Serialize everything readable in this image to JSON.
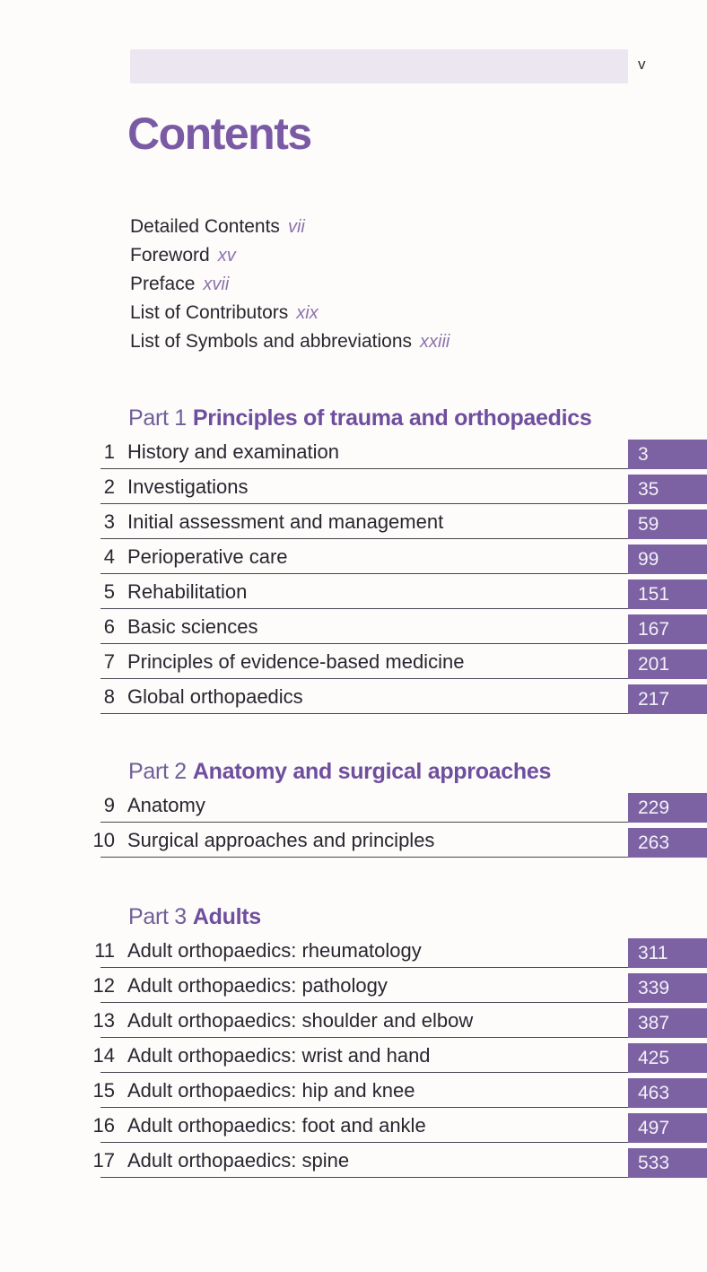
{
  "page": {
    "folio": "v",
    "title": "Contents"
  },
  "front_matter": [
    {
      "label": "Detailed Contents",
      "page": "vii"
    },
    {
      "label": "Foreword",
      "page": "xv"
    },
    {
      "label": "Preface",
      "page": "xvii"
    },
    {
      "label": "List of Contributors",
      "page": "xix"
    },
    {
      "label": "List of Symbols and abbreviations",
      "page": "xxiii"
    }
  ],
  "parts": [
    {
      "label": "Part 1",
      "title": "Principles of trauma and orthopaedics",
      "chapters": [
        {
          "num": "1",
          "title": "History and examination",
          "page": "3"
        },
        {
          "num": "2",
          "title": "Investigations",
          "page": "35"
        },
        {
          "num": "3",
          "title": "Initial assessment and management",
          "page": "59"
        },
        {
          "num": "4",
          "title": "Perioperative care",
          "page": "99"
        },
        {
          "num": "5",
          "title": "Rehabilitation",
          "page": "151"
        },
        {
          "num": "6",
          "title": "Basic sciences",
          "page": "167"
        },
        {
          "num": "7",
          "title": "Principles of evidence-based medicine",
          "page": "201"
        },
        {
          "num": "8",
          "title": "Global orthopaedics",
          "page": "217"
        }
      ]
    },
    {
      "label": "Part 2",
      "title": "Anatomy and surgical approaches",
      "chapters": [
        {
          "num": "9",
          "title": "Anatomy",
          "page": "229"
        },
        {
          "num": "10",
          "title": "Surgical approaches and principles",
          "page": "263"
        }
      ]
    },
    {
      "label": "Part 3",
      "title": "Adults",
      "chapters": [
        {
          "num": "11",
          "title": "Adult orthopaedics: rheumatology",
          "page": "311"
        },
        {
          "num": "12",
          "title": "Adult orthopaedics: pathology",
          "page": "339"
        },
        {
          "num": "13",
          "title": "Adult orthopaedics: shoulder and elbow",
          "page": "387"
        },
        {
          "num": "14",
          "title": "Adult orthopaedics: wrist and hand",
          "page": "425"
        },
        {
          "num": "15",
          "title": "Adult orthopaedics: hip and knee",
          "page": "463"
        },
        {
          "num": "16",
          "title": "Adult orthopaedics: foot and ankle",
          "page": "497"
        },
        {
          "num": "17",
          "title": "Adult orthopaedics: spine",
          "page": "533"
        }
      ]
    }
  ],
  "colors": {
    "accent": "#7b5aa5",
    "part-label": "#70609a",
    "part-title": "#6f4e9e",
    "box": "#7c62a3",
    "box-text": "#f3eff7",
    "bar": "#ebe6f0",
    "rule": "#4a4550",
    "body-text": "#2a2630",
    "roman": "#8d72ad"
  }
}
